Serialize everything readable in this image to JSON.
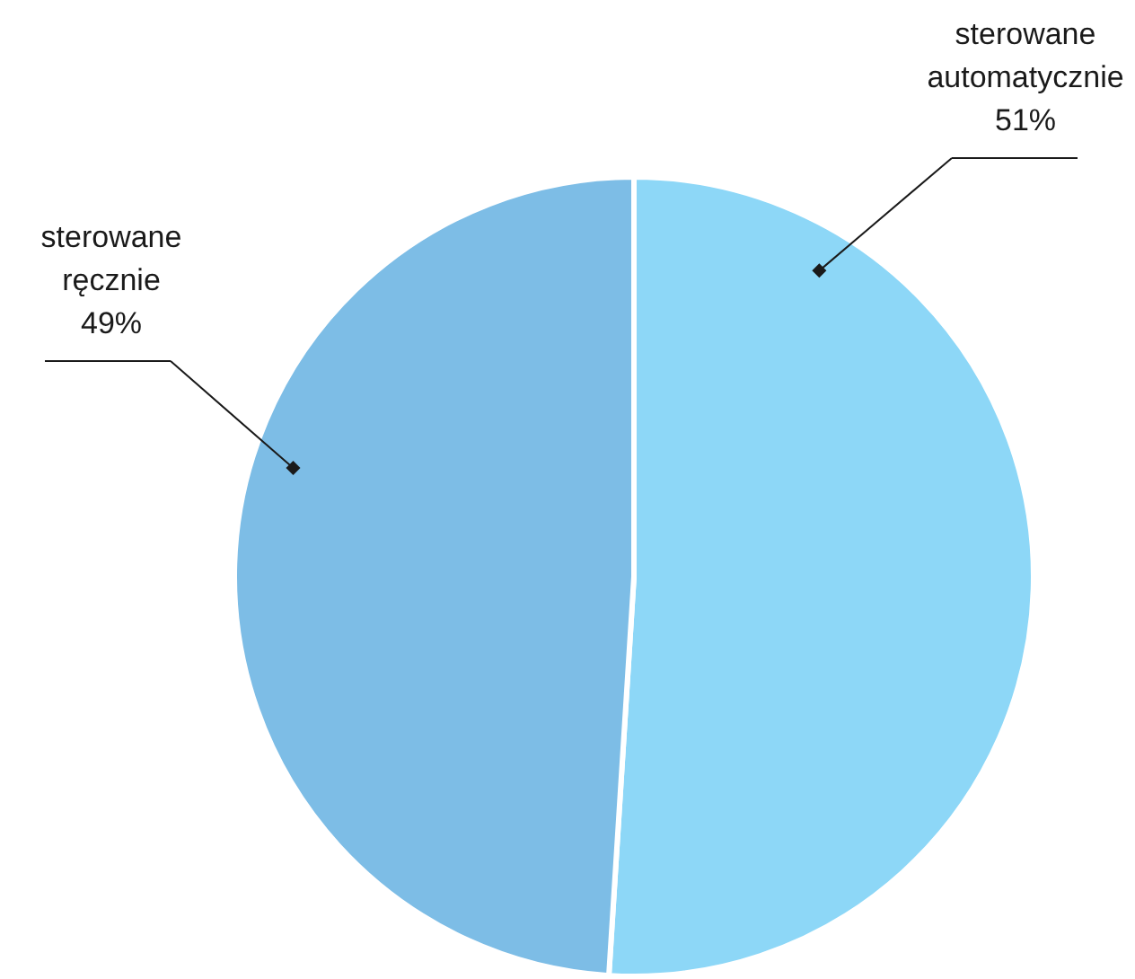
{
  "chart_data": {
    "type": "pie",
    "categories": [
      "sterowane automatycznie",
      "sterowane ręcznie"
    ],
    "values": [
      51,
      49
    ],
    "colors": [
      "#8dd7f7",
      "#7dbde6"
    ],
    "value_labels": [
      "51%",
      "49%"
    ],
    "legend": false
  }
}
